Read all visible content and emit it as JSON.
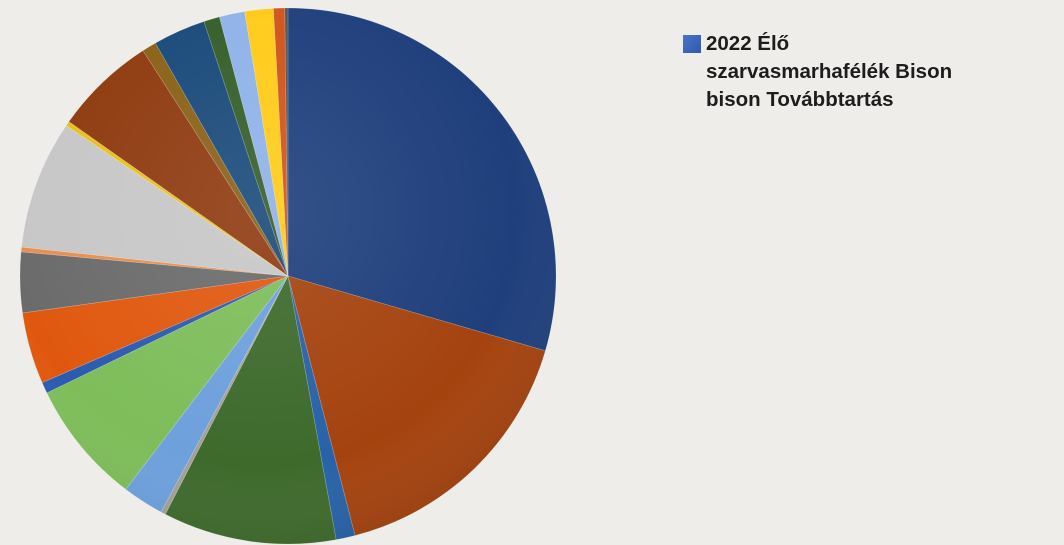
{
  "chart_data": {
    "type": "pie",
    "title": "",
    "legend": {
      "position": "top-right",
      "entries": [
        "2022 Élő\nszarvasmarhafélék Bison\nbison Továbbtartás"
      ]
    },
    "series": [
      {
        "name": "2022 Élő szarvasmarhafélék Bison bison Továbbtartás",
        "values": [
          30.8,
          17.2,
          1.2,
          10.9,
          0.3,
          2.6,
          7.8,
          0.7,
          4.5,
          3.8,
          0.3,
          8.1,
          0.3,
          6.4,
          0.9,
          3.3,
          1.0,
          1.6,
          1.8,
          0.7,
          0.2
        ]
      }
    ],
    "slice_colors": [
      "#1f3f7c",
      "#a5430f",
      "#2862a8",
      "#3e6a2c",
      "#a3a099",
      "#6ea0dc",
      "#7ebd5a",
      "#2b5bb0",
      "#e0580f",
      "#6b6b6b",
      "#e68f52",
      "#c7c7c7",
      "#e8c01d",
      "#8f3b10",
      "#8a6116",
      "#1a4a7a",
      "#355e2a",
      "#8fb2e8",
      "#ffcb19",
      "#d0541a",
      "#555555"
    ]
  }
}
